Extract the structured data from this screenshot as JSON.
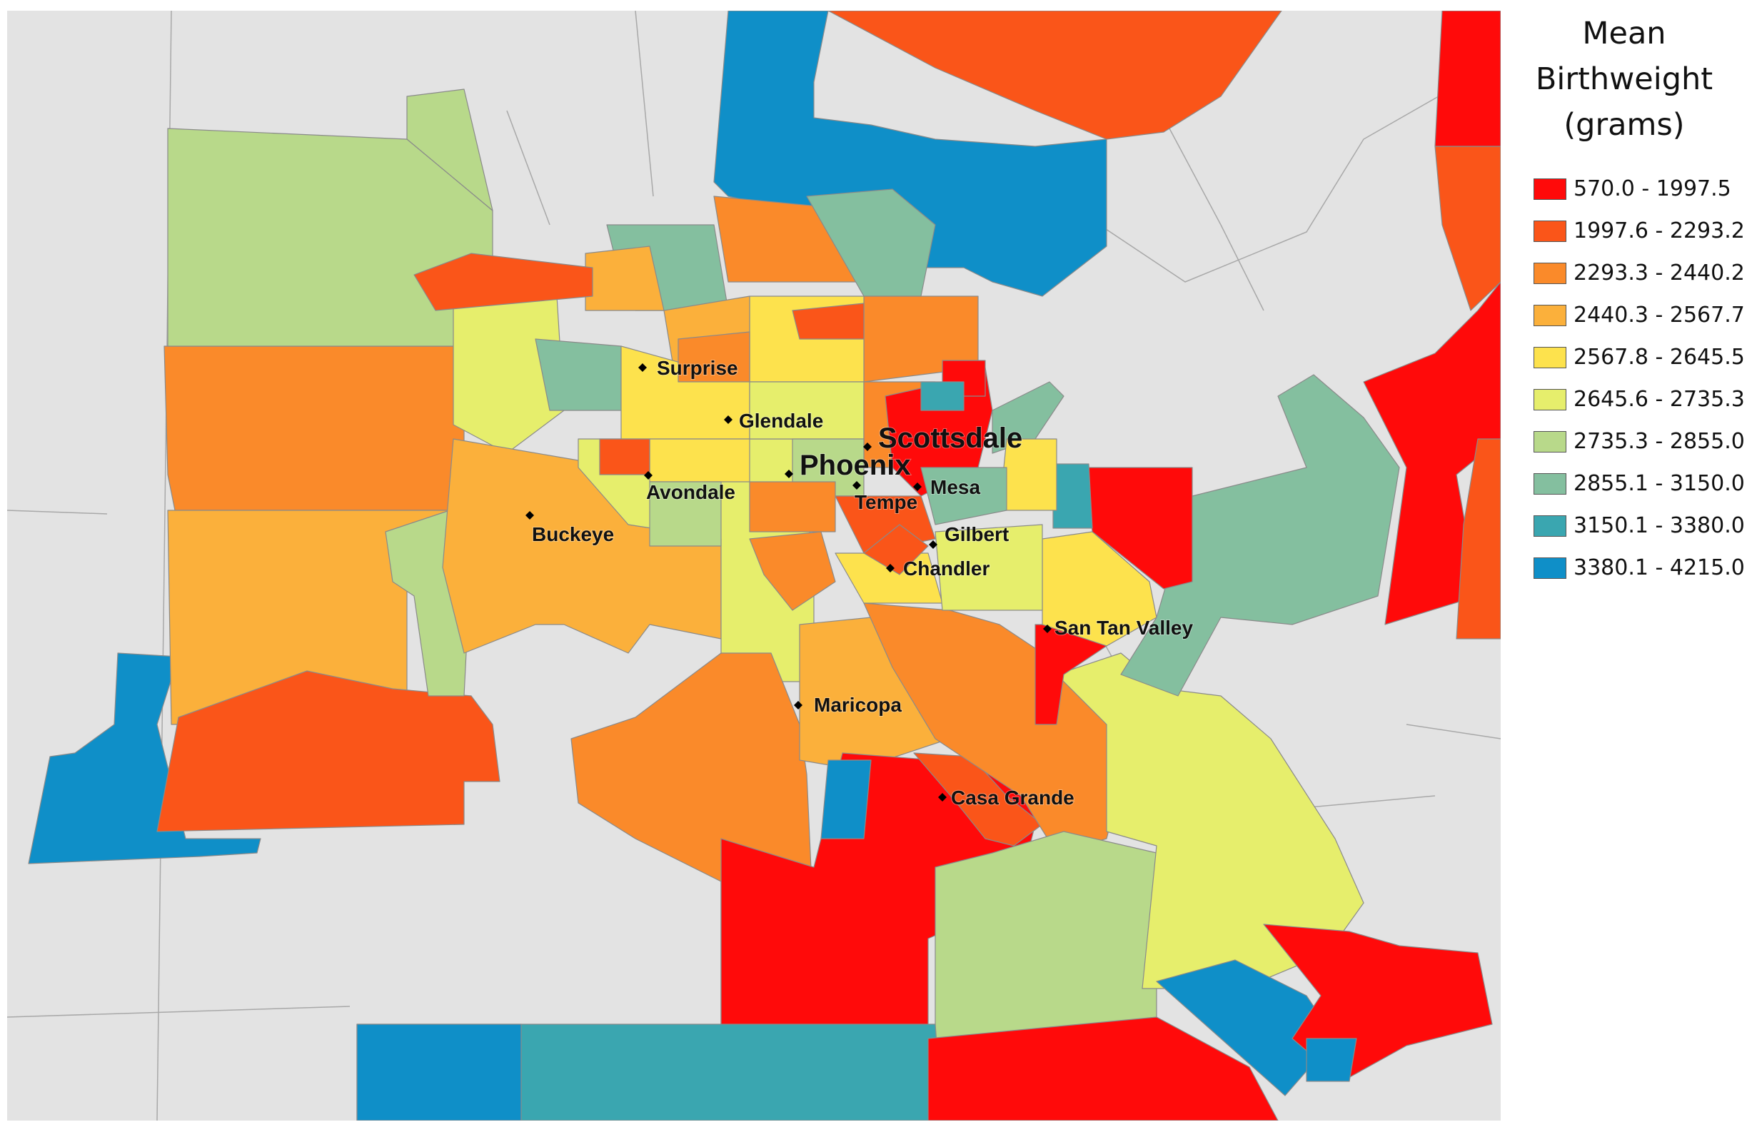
{
  "legend": {
    "title_lines": [
      "Mean",
      "Birthweight",
      "(grams)"
    ],
    "classes": [
      {
        "label": "570.0 - 1997.5",
        "color": "#ff0a0a"
      },
      {
        "label": "1997.6 - 2293.2",
        "color": "#fa5519"
      },
      {
        "label": "2293.3 - 2440.2",
        "color": "#fa8a2a"
      },
      {
        "label": "2440.3 - 2567.7",
        "color": "#fbb03b"
      },
      {
        "label": "2567.8 - 2645.5",
        "color": "#fde24d"
      },
      {
        "label": "2645.6 - 2735.3",
        "color": "#e6ee6c"
      },
      {
        "label": "2735.3 - 2855.0",
        "color": "#b8d98a"
      },
      {
        "label": "2855.1 - 3150.0",
        "color": "#84bf9f"
      },
      {
        "label": "3150.1 - 3380.0",
        "color": "#3aa6b0"
      },
      {
        "label": "3380.1 - 4215.0",
        "color": "#0f8fc8"
      }
    ]
  },
  "colors": {
    "background": "#e3e3e3",
    "boundary": "#8a8a8a"
  },
  "cities": [
    {
      "name": "Surprise"
    },
    {
      "name": "Glendale"
    },
    {
      "name": "Scottsdale"
    },
    {
      "name": "Phoenix"
    },
    {
      "name": "Avondale"
    },
    {
      "name": "Mesa"
    },
    {
      "name": "Tempe"
    },
    {
      "name": "Buckeye"
    },
    {
      "name": "Gilbert"
    },
    {
      "name": "Chandler"
    },
    {
      "name": "San Tan Valley"
    },
    {
      "name": "Maricopa"
    },
    {
      "name": "Casa Grande"
    }
  ]
}
